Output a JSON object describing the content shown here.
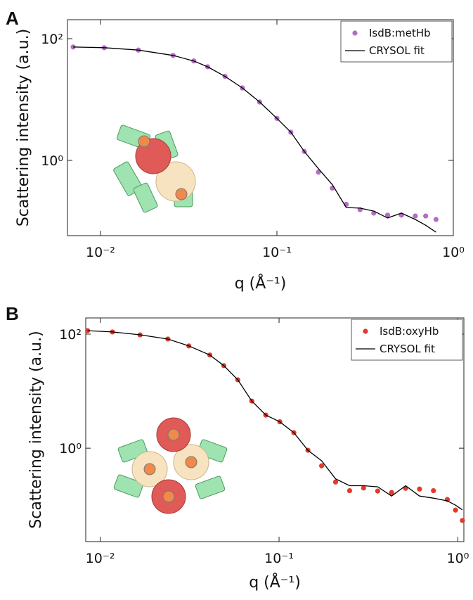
{
  "chart_data": [
    {
      "type": "line",
      "panel_label": "A",
      "x_label": "q (Å⁻¹)",
      "y_label": "Scattering intensity (a.u.)",
      "log_x": true,
      "log_y": true,
      "legend": "upper right",
      "xlim": [
        0.0065,
        1.0
      ],
      "ylim": [
        0.058,
        205
      ],
      "xticks": [
        {
          "value": 0.01,
          "label": "10⁻²"
        },
        {
          "value": 0.1,
          "label": "10⁻¹"
        },
        {
          "value": 1,
          "label": "10⁰"
        }
      ],
      "yticks": [
        {
          "value": 100,
          "label": "10²"
        },
        {
          "value": 1,
          "label": "10⁰"
        }
      ],
      "x": [
        0.007,
        0.0105,
        0.0164,
        0.0258,
        0.0338,
        0.0405,
        0.0508,
        0.0637,
        0.0798,
        0.1,
        0.12,
        0.143,
        0.172,
        0.206,
        0.247,
        0.296,
        0.354,
        0.424,
        0.508,
        0.609,
        0.697,
        0.798
      ],
      "series": [
        {
          "name": "IsdB:metHb",
          "color": "#b46cc6",
          "mode": "markers",
          "values": [
            73,
            71,
            65,
            53,
            43,
            34.5,
            24,
            15.5,
            9.1,
            4.9,
            2.9,
            1.4,
            0.64,
            0.35,
            0.19,
            0.155,
            0.136,
            0.126,
            0.126,
            0.122,
            0.122,
            0.107
          ]
        },
        {
          "name": "CRYSOL fit",
          "color": "#000000",
          "mode": "line",
          "values": [
            73,
            71,
            65,
            53,
            43,
            34.5,
            24,
            15.5,
            9.1,
            4.9,
            2.9,
            1.4,
            0.73,
            0.4,
            0.168,
            0.164,
            0.147,
            0.113,
            0.136,
            0.107,
            0.086,
            0.066
          ]
        }
      ]
    },
    {
      "type": "line",
      "panel_label": "B",
      "x_label": "q (Å⁻¹)",
      "y_label": "Scattering intensity (a.u.)",
      "log_x": true,
      "log_y": true,
      "legend": "upper right",
      "xlim": [
        0.0083,
        1.08
      ],
      "ylim": [
        0.023,
        192
      ],
      "xticks": [
        {
          "value": 0.01,
          "label": "10⁻²"
        },
        {
          "value": 0.1,
          "label": "10⁻¹"
        },
        {
          "value": 1,
          "label": "10⁰"
        }
      ],
      "yticks": [
        {
          "value": 100,
          "label": "10²"
        },
        {
          "value": 1,
          "label": "10⁰"
        }
      ],
      "x": [
        0.0085,
        0.0117,
        0.0167,
        0.0239,
        0.0313,
        0.041,
        0.0491,
        0.0588,
        0.0704,
        0.0843,
        0.101,
        0.121,
        0.145,
        0.173,
        0.207,
        0.248,
        0.297,
        0.356,
        0.426,
        0.51,
        0.61,
        0.73,
        0.873,
        0.97,
        1.06
      ],
      "series": [
        {
          "name": "IsdB:oxyHb",
          "color": "#e23a2c",
          "mode": "markers",
          "values": [
            115,
            109,
            97,
            82,
            62,
            43,
            28,
            15.8,
            6.7,
            3.8,
            2.9,
            1.87,
            0.92,
            0.49,
            0.255,
            0.18,
            0.2,
            0.177,
            0.167,
            0.198,
            0.192,
            0.18,
            0.126,
            0.082,
            0.054
          ]
        },
        {
          "name": "CRYSOL fit",
          "color": "#000000",
          "mode": "line",
          "values": [
            115,
            109,
            97,
            82,
            62,
            43,
            28,
            15.8,
            6.7,
            3.8,
            2.9,
            1.87,
            0.92,
            0.6,
            0.29,
            0.22,
            0.22,
            0.21,
            0.145,
            0.22,
            0.145,
            0.133,
            0.119,
            0.1,
            0.083
          ]
        }
      ]
    }
  ]
}
